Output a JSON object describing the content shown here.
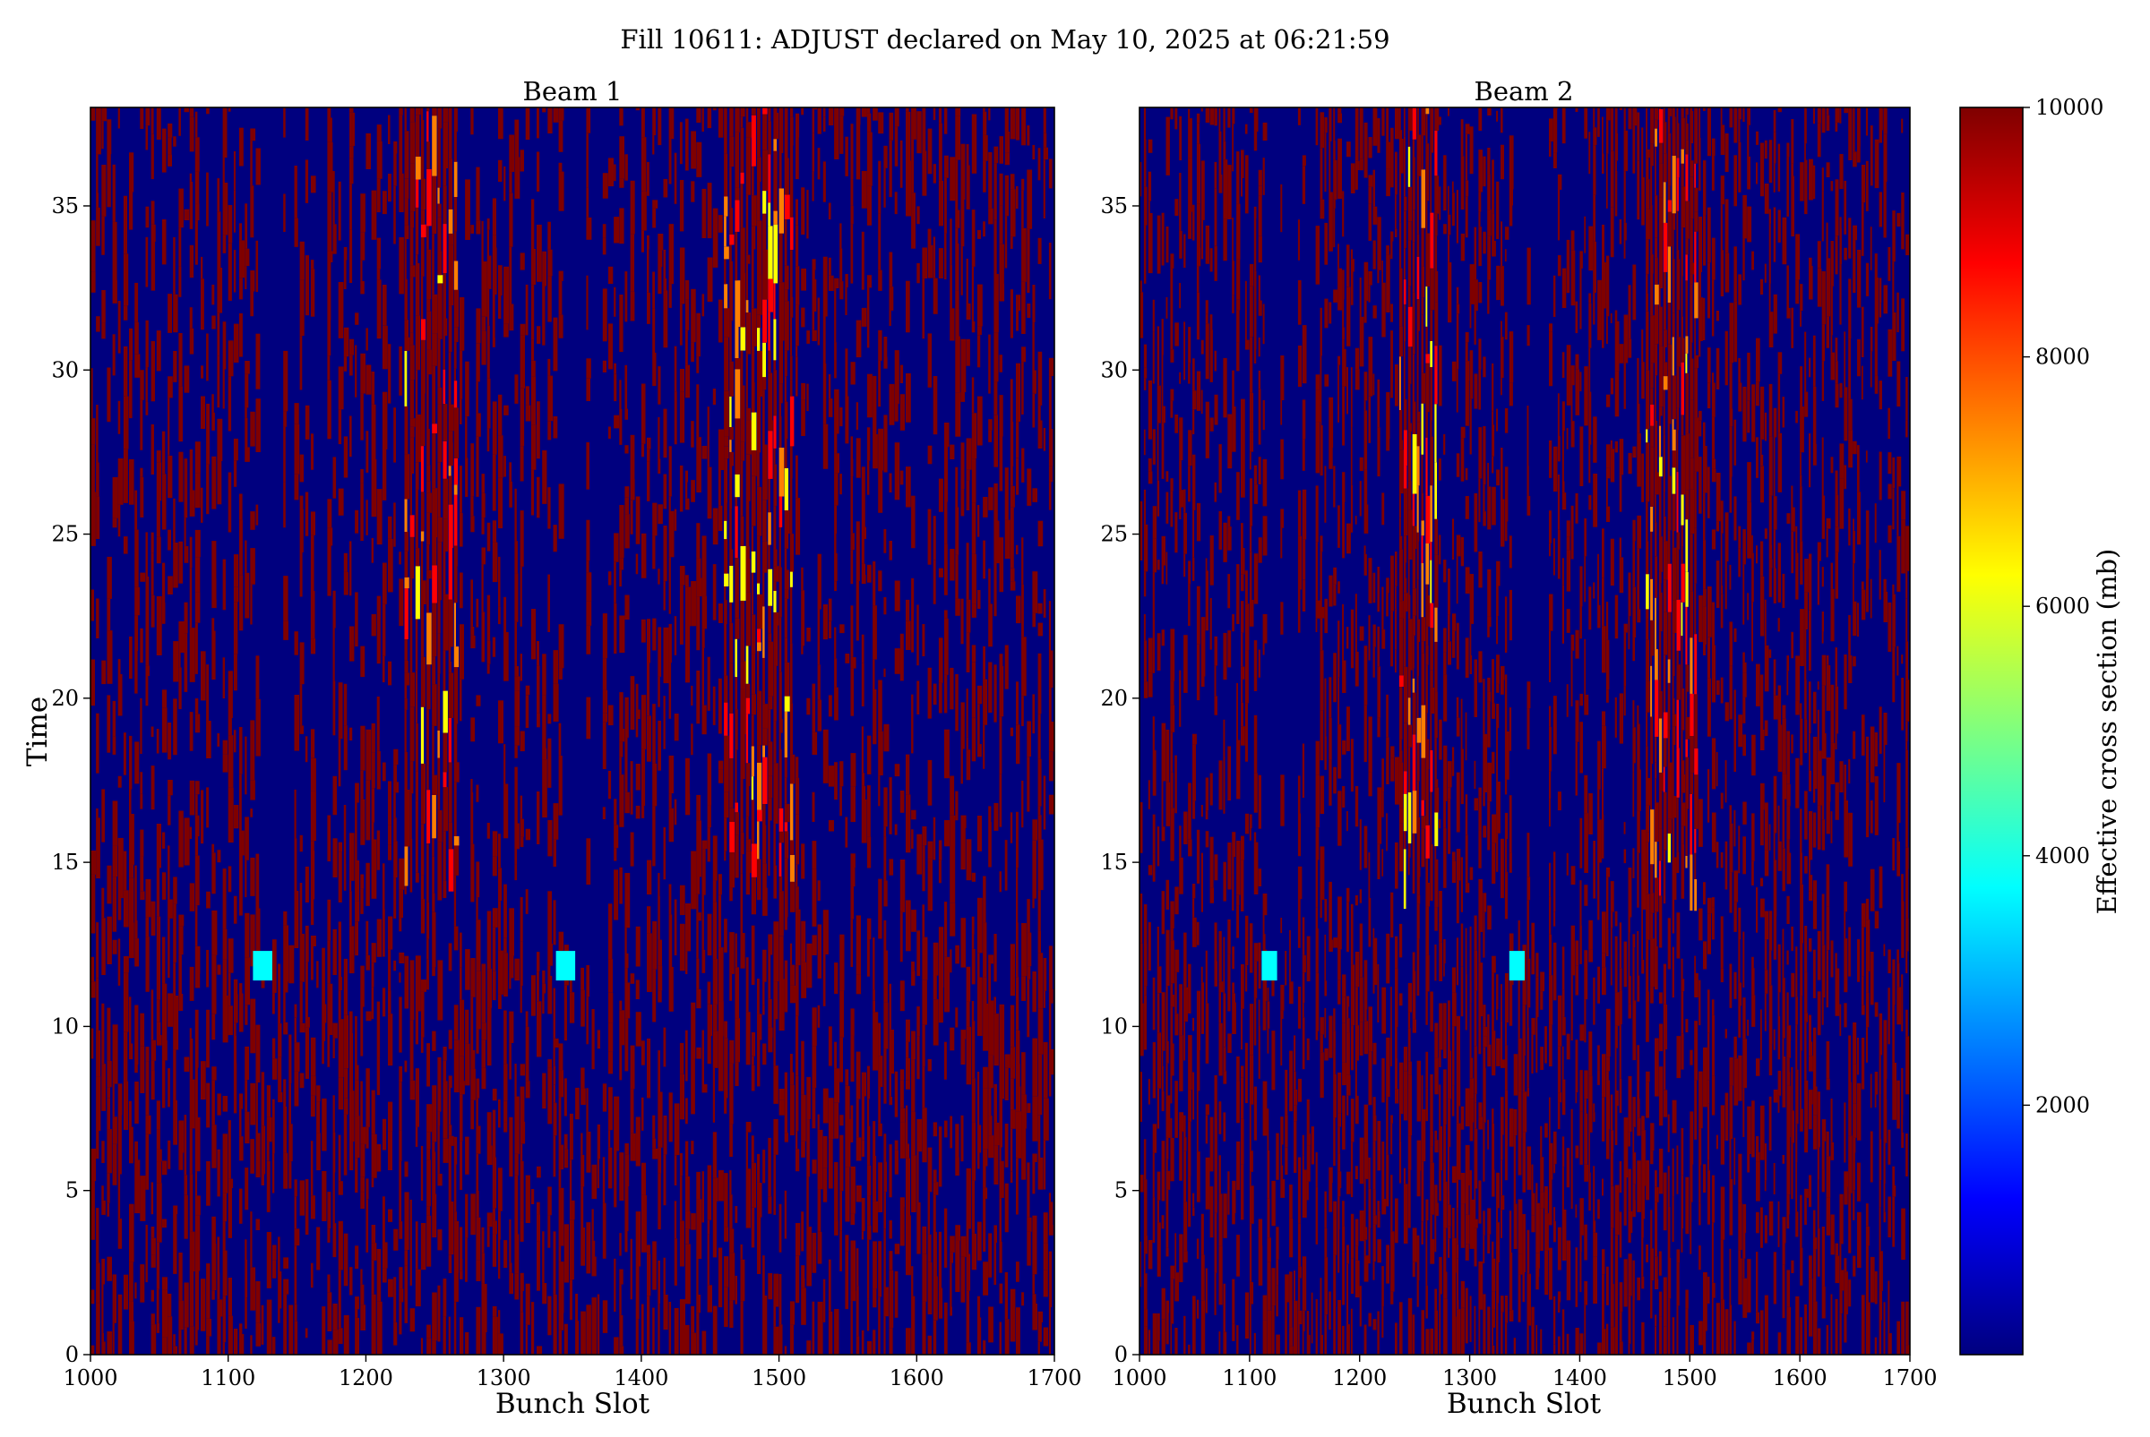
{
  "title": "Fill 10611: ADJUST declared on May 10, 2025 at 06:21:59",
  "colormap": [
    "#00007f",
    "#0000ff",
    "#007fff",
    "#00ffff",
    "#7fff7f",
    "#ffff00",
    "#ff7f00",
    "#ff0000",
    "#7f0000"
  ],
  "chart_data": [
    {
      "type": "heatmap",
      "title": "Beam 1",
      "xlabel": "Bunch Slot",
      "ylabel": "Time",
      "xlim": [
        1000,
        1700
      ],
      "ylim": [
        0,
        38
      ],
      "xticks": [
        1000,
        1100,
        1200,
        1300,
        1400,
        1500,
        1600,
        1700
      ],
      "yticks": [
        0,
        5,
        10,
        15,
        20,
        25,
        30,
        35
      ],
      "empty_bands": [
        [
          1122,
          1140
        ],
        [
          1144,
          1148
        ],
        [
          1164,
          1172
        ],
        [
          1342,
          1358
        ],
        [
          1362,
          1370
        ]
      ],
      "injection_time": 12,
      "hot_bands": [
        [
          1228,
          1268
        ],
        [
          1460,
          1510
        ]
      ],
      "hot_band_start_time": 13.5
    },
    {
      "type": "heatmap",
      "title": "Beam 2",
      "xlabel": "Bunch Slot",
      "ylabel": "",
      "xlim": [
        1000,
        1700
      ],
      "ylim": [
        0,
        38
      ],
      "xticks": [
        1000,
        1100,
        1200,
        1300,
        1400,
        1500,
        1600,
        1700
      ],
      "yticks": [
        0,
        5,
        10,
        15,
        20,
        25,
        30,
        35
      ],
      "empty_bands": [
        [
          1115,
          1128
        ],
        [
          1130,
          1142
        ],
        [
          1152,
          1160
        ],
        [
          1340,
          1352
        ],
        [
          1356,
          1372
        ]
      ],
      "injection_time": 12,
      "hot_bands": [
        [
          1235,
          1270
        ],
        [
          1460,
          1505
        ]
      ],
      "hot_band_start_time": 13.5
    }
  ],
  "colorbar": {
    "label": "Effective cross section (mb)",
    "min": 0,
    "max": 10000,
    "ticks": [
      2000,
      4000,
      6000,
      8000,
      10000
    ]
  }
}
